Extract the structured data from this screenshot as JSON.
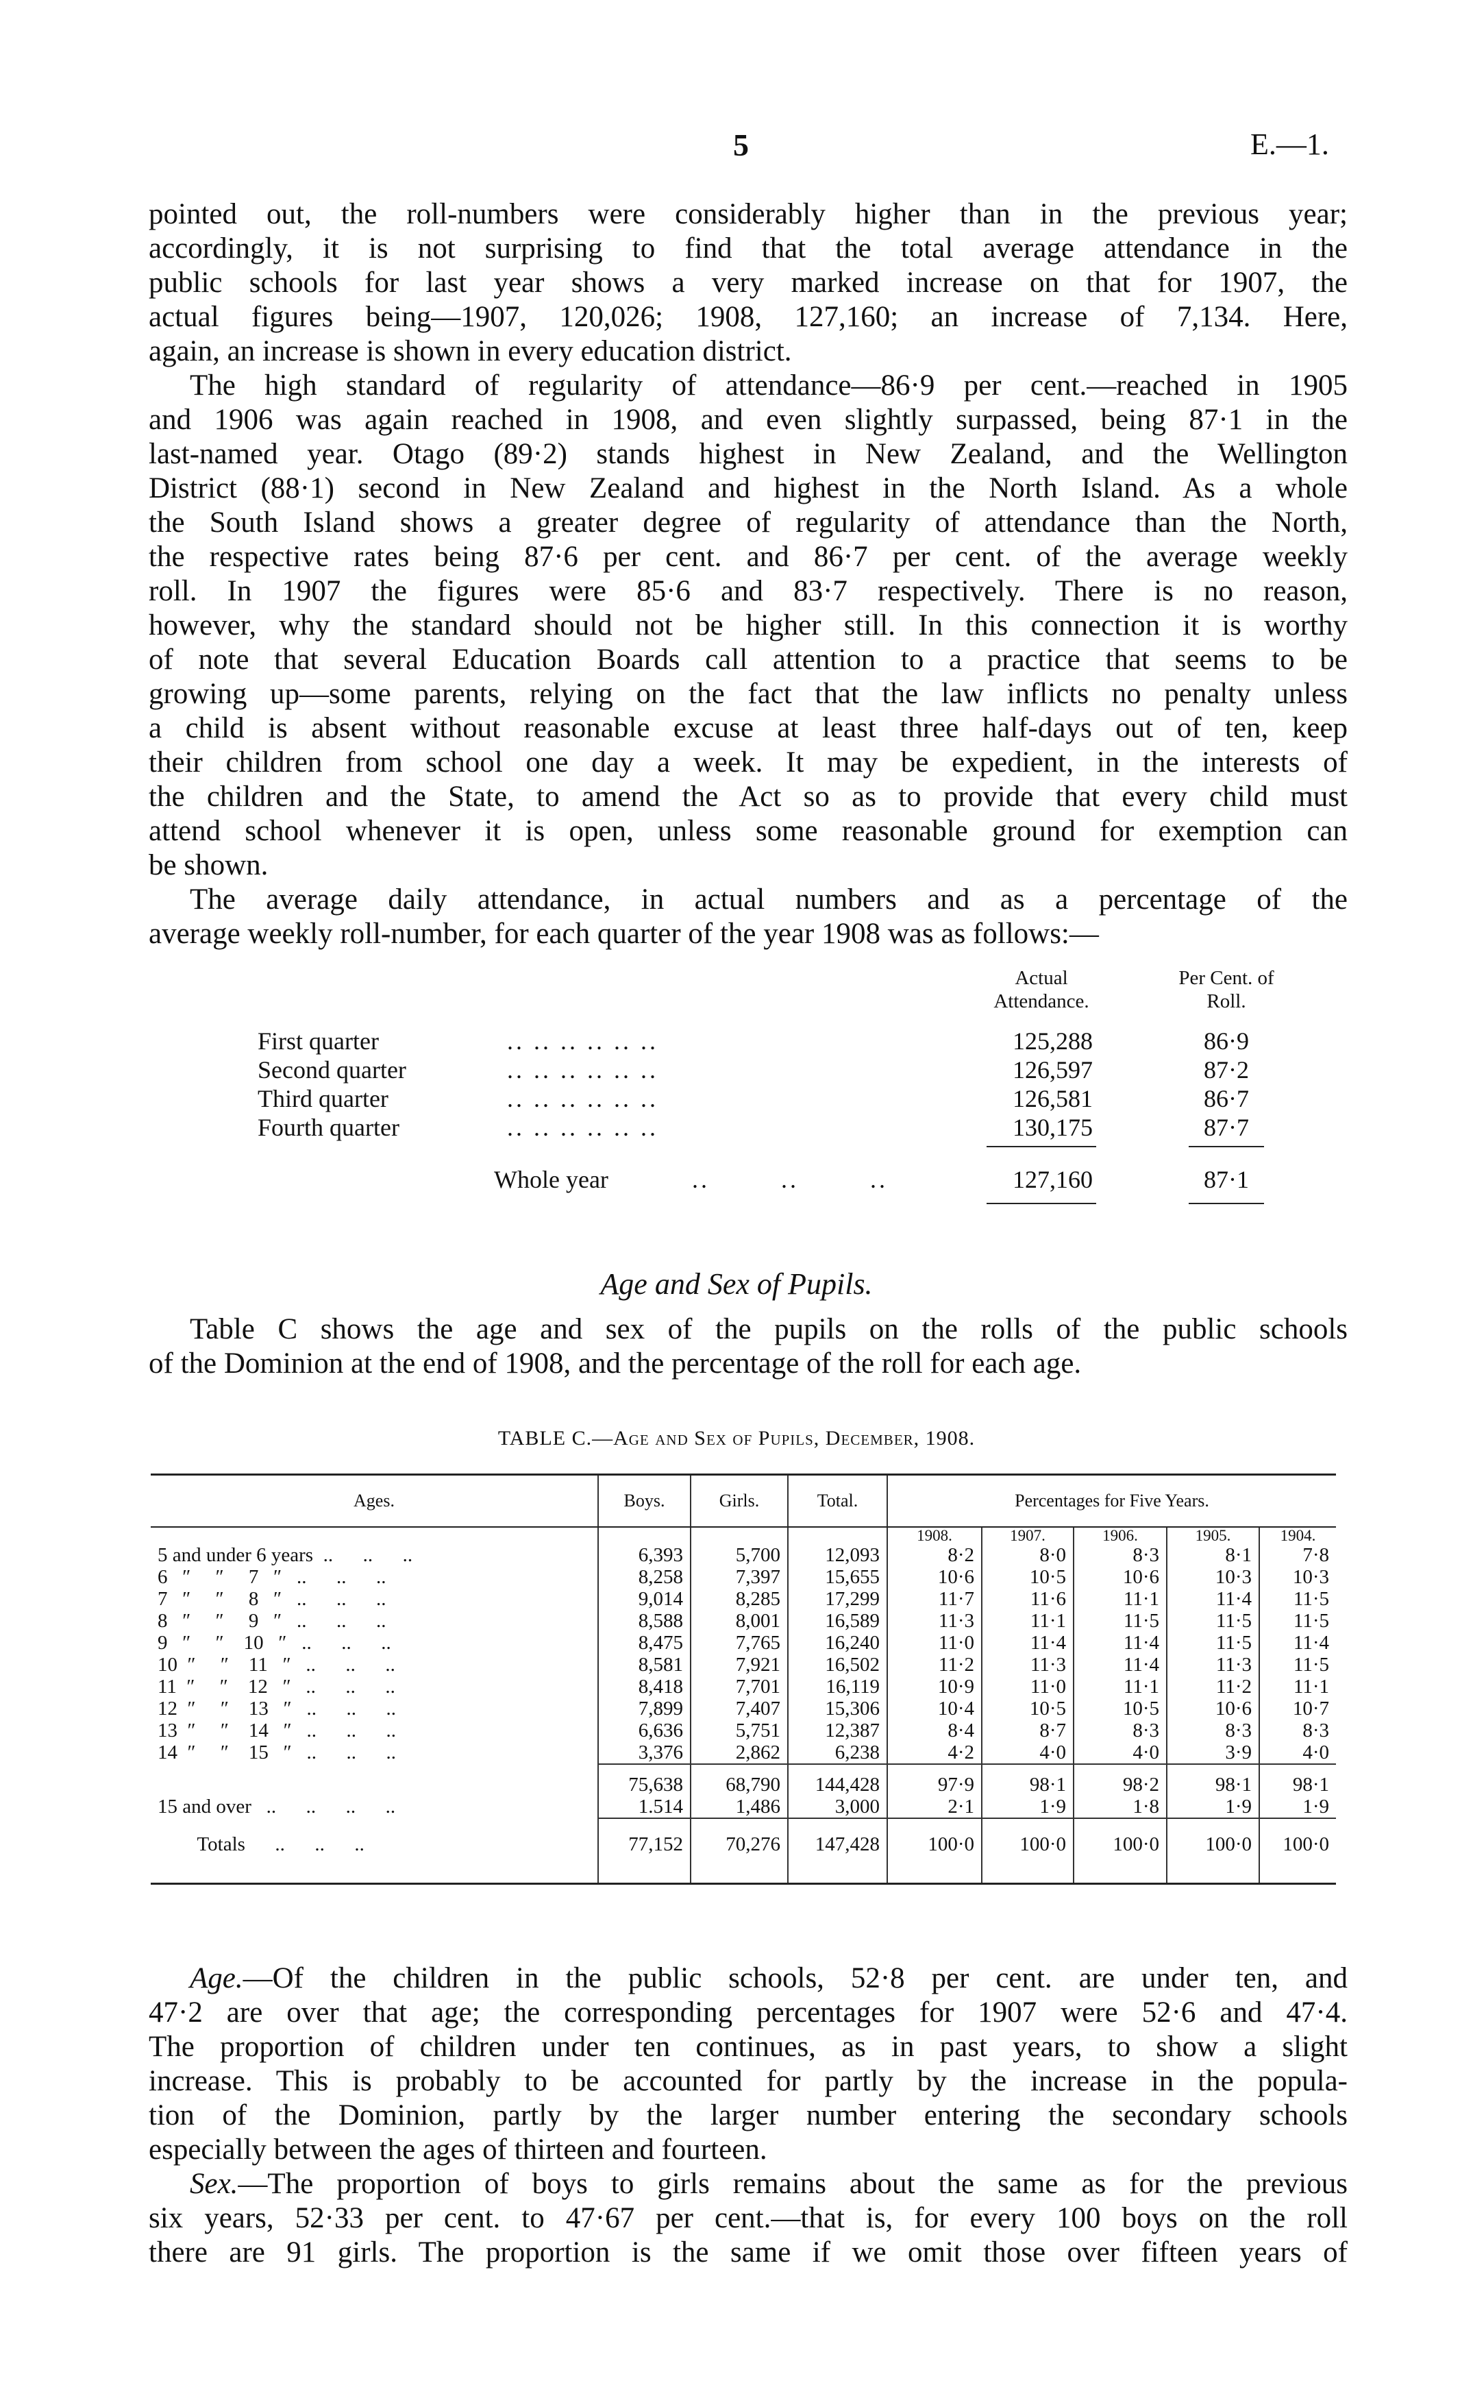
{
  "header": {
    "page_number": "5",
    "doc_ref": "E.—1."
  },
  "paragraphs_top": [
    {
      "indent": false,
      "lines": [
        "pointed out, the roll-numbers were considerably higher than in the previous year;",
        "accordingly, it is not surprising to find that the total average attendance in the",
        "public schools for last year shows a very marked increase on that for 1907, the",
        "actual figures being—1907, 120,026; 1908, 127,160; an increase of 7,134. Here,",
        "again, an increase is shown in every education district."
      ]
    },
    {
      "indent": true,
      "lines": [
        "The high standard of regularity of attendance—86·9 per cent.—reached in 1905",
        "and 1906 was again reached in 1908, and even slightly surpassed, being 87·1 in the",
        "last-named year. Otago (89·2) stands highest in New Zealand, and the Wellington",
        "District (88·1) second in New Zealand and highest in the North Island. As a whole",
        "the South Island shows a greater degree of regularity of attendance than the North,",
        "the respective rates being 87·6 per cent. and 86·7 per cent. of the average weekly",
        "roll. In 1907 the figures were 85·6 and 83·7 respectively. There is no reason,",
        "however, why the standard should not be higher still. In this connection it is worthy",
        "of note that several Education Boards call attention to a practice that seems to be",
        "growing up—some parents, relying on the fact that the law inflicts no penalty unless",
        "a child is absent without reasonable excuse at least three half-days out of ten, keep",
        "their children from school one day a week. It may be expedient, in the interests of",
        "the children and the State, to amend the Act so as to provide that every child must",
        "attend school whenever it is open, unless some reasonable ground for exemption can",
        "be shown."
      ]
    },
    {
      "indent": true,
      "lines": [
        "The average daily attendance, in actual numbers and as a percentage of the",
        "average weekly roll-number, for each quarter of the year 1908 was as follows:—"
      ]
    }
  ],
  "quarter_table": {
    "col_actual": "Actual Attendance.",
    "col_percent": "Per Cent. of Roll.",
    "rows": [
      {
        "label": "First quarter",
        "actual": "125,288",
        "percent": "86·9"
      },
      {
        "label": "Second quarter",
        "actual": "126,597",
        "percent": "87·2"
      },
      {
        "label": "Third quarter",
        "actual": "126,581",
        "percent": "86·7"
      },
      {
        "label": "Fourth quarter",
        "actual": "130,175",
        "percent": "87·7"
      }
    ],
    "total": {
      "label": "Whole year",
      "actual": "127,160",
      "percent": "87·1"
    },
    "leader": ".. .. .. .. .. .."
  },
  "section_heading": "Age and Sex of Pupils.",
  "intro_lines": [
    "Table C shows the age and sex of the pupils on the rolls of the public schools",
    "of the Dominion at the end of 1908, and the percentage of the roll for each age."
  ],
  "table_c": {
    "title": "TABLE C.—Age and Sex of Pupils, December, 1908.",
    "headers": {
      "ages": "Ages.",
      "boys": "Boys.",
      "girls": "Girls.",
      "total": "Total.",
      "percentages": "Percentages for Five Years."
    },
    "years": [
      "1908.",
      "1907.",
      "1906.",
      "1905.",
      "1904."
    ],
    "rows": [
      {
        "age": "5 and under 6 years  ..      ..      ..",
        "boys": "6,393",
        "girls": "5,700",
        "total": "12,093",
        "pct": [
          "8·2",
          "8·0",
          "8·3",
          "8·1",
          "7·8"
        ]
      },
      {
        "age": "6   ″     ″     7   ″   ..      ..      ..",
        "boys": "8,258",
        "girls": "7,397",
        "total": "15,655",
        "pct": [
          "10·6",
          "10·5",
          "10·6",
          "10·3",
          "10·3"
        ]
      },
      {
        "age": "7   ″     ″     8   ″   ..      ..      ..",
        "boys": "9,014",
        "girls": "8,285",
        "total": "17,299",
        "pct": [
          "11·7",
          "11·6",
          "11·1",
          "11·4",
          "11·5"
        ]
      },
      {
        "age": "8   ″     ″     9   ″   ..      ..      ..",
        "boys": "8,588",
        "girls": "8,001",
        "total": "16,589",
        "pct": [
          "11·3",
          "11·1",
          "11·5",
          "11·5",
          "11·5"
        ]
      },
      {
        "age": "9   ″     ″    10   ″   ..      ..      ..",
        "boys": "8,475",
        "girls": "7,765",
        "total": "16,240",
        "pct": [
          "11·0",
          "11·4",
          "11·4",
          "11·5",
          "11·4"
        ]
      },
      {
        "age": "10  ″     ″    11   ″   ..      ..      ..",
        "boys": "8,581",
        "girls": "7,921",
        "total": "16,502",
        "pct": [
          "11·2",
          "11·3",
          "11·4",
          "11·3",
          "11·5"
        ]
      },
      {
        "age": "11  ″     ″    12   ″   ..      ..      ..",
        "boys": "8,418",
        "girls": "7,701",
        "total": "16,119",
        "pct": [
          "10·9",
          "11·0",
          "11·1",
          "11·2",
          "11·1"
        ]
      },
      {
        "age": "12  ″     ″    13   ″   ..      ..      ..",
        "boys": "7,899",
        "girls": "7,407",
        "total": "15,306",
        "pct": [
          "10·4",
          "10·5",
          "10·5",
          "10·6",
          "10·7"
        ]
      },
      {
        "age": "13  ″     ″    14   ″   ..      ..      ..",
        "boys": "6,636",
        "girls": "5,751",
        "total": "12,387",
        "pct": [
          "8·4",
          "8·7",
          "8·3",
          "8·3",
          "8·3"
        ]
      },
      {
        "age": "14  ″     ″    15   ″   ..      ..      ..",
        "boys": "3,376",
        "girls": "2,862",
        "total": "6,238",
        "pct": [
          "4·2",
          "4·0",
          "4·0",
          "3·9",
          "4·0"
        ]
      }
    ],
    "subtotal": {
      "boys": "75,638",
      "girls": "68,790",
      "total": "144,428",
      "pct": [
        "97·9",
        "98·1",
        "98·2",
        "98·1",
        "98·1"
      ]
    },
    "over15": {
      "age": "15 and over   ..      ..      ..      ..",
      "boys": "1.514",
      "girls": "1,486",
      "total": "3,000",
      "pct": [
        "2·1",
        "1·9",
        "1·8",
        "1·9",
        "1·9"
      ]
    },
    "totals": {
      "age": "        Totals      ..      ..      ..",
      "boys": "77,152",
      "girls": "70,276",
      "total": "147,428",
      "pct": [
        "100·0",
        "100·0",
        "100·0",
        "100·0",
        "100·0"
      ]
    }
  },
  "paragraphs_bottom": [
    {
      "lead": "Age.",
      "lines": [
        "—Of the children in the public schools, 52·8 per cent. are under ten, and",
        "47·2 are over that age; the corresponding percentages for 1907 were 52·6 and 47·4.",
        "The proportion of children under ten continues, as in past years, to show a slight",
        "increase. This is probably to be accounted for partly by the increase in the popula-",
        "tion of the Dominion, partly by the larger number entering the secondary schools",
        "especially between the ages of thirteen and fourteen."
      ]
    },
    {
      "lead": "Sex.",
      "lines": [
        "—The proportion of boys to girls remains about the same as for the previous",
        "six years, 52·33 per cent. to 47·67 per cent.—that is, for every 100 boys on the roll",
        "there are 91 girls. The proportion is the same if we omit those over fifteen years of"
      ]
    }
  ]
}
